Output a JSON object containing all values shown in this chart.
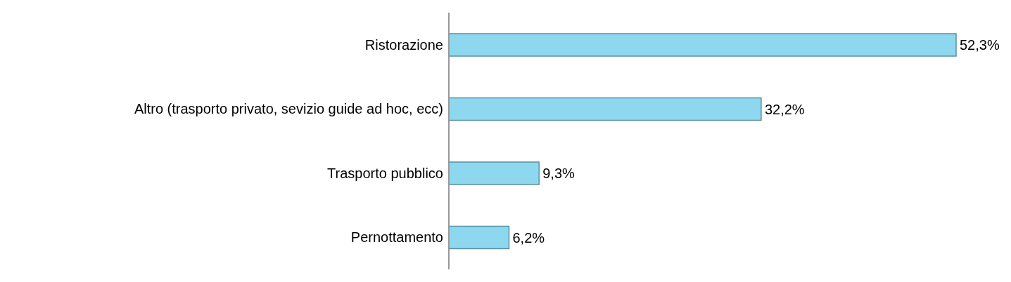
{
  "chart_data": {
    "type": "bar",
    "orientation": "horizontal",
    "categories": [
      "Ristorazione",
      "Altro (trasporto privato, sevizio guide ad hoc, ecc)",
      "Trasporto pubblico",
      "Pernottamento"
    ],
    "values": [
      52.3,
      32.2,
      9.3,
      6.2
    ],
    "value_labels": [
      "52,3%",
      "32,2%",
      "9,3%",
      "6,2%"
    ],
    "color": "#8ed8ef",
    "grid": false,
    "legend": false
  }
}
